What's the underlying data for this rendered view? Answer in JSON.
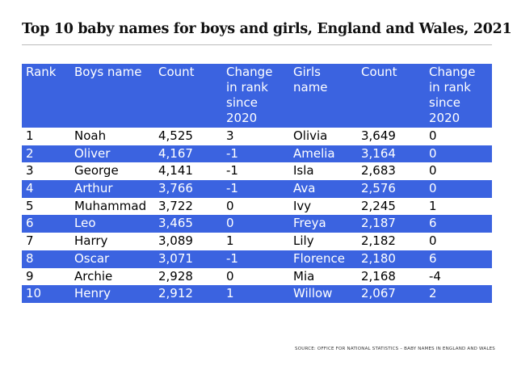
{
  "header": {
    "title": "Top 10 baby names for boys and girls, England and Wales, 2021"
  },
  "table": {
    "columns": [
      "Rank",
      "Boys name",
      "Count",
      "Change in rank since 2020",
      "Girls name",
      "Count",
      "Change in rank since 2020"
    ],
    "rows": [
      [
        "1",
        "Noah",
        "4,525",
        "3",
        "Olivia",
        "3,649",
        "0"
      ],
      [
        "2",
        "Oliver",
        "4,167",
        "-1",
        "Amelia",
        "3,164",
        "0"
      ],
      [
        "3",
        "George",
        "4,141",
        "-1",
        "Isla",
        "2,683",
        "0"
      ],
      [
        "4",
        "Arthur",
        "3,766",
        "-1",
        "Ava",
        "2,576",
        "0"
      ],
      [
        "5",
        "Muhammad",
        "3,722",
        "0",
        "Ivy",
        "2,245",
        "1"
      ],
      [
        "6",
        "Leo",
        "3,465",
        "0",
        "Freya",
        "2,187",
        "6"
      ],
      [
        "7",
        "Harry",
        "3,089",
        "1",
        "Lily",
        "2,182",
        "0"
      ],
      [
        "8",
        "Oscar",
        "3,071",
        "-1",
        "Florence",
        "2,180",
        "6"
      ],
      [
        "9",
        "Archie",
        "2,928",
        "0",
        "Mia",
        "2,168",
        "-4"
      ],
      [
        "10",
        "Henry",
        "2,912",
        "1",
        "Willow",
        "2,067",
        "2"
      ]
    ]
  },
  "footer": {
    "source": "SOURCE: OFFICE FOR NATIONAL STATISTICS – BABY NAMES IN ENGLAND AND WALES"
  }
}
